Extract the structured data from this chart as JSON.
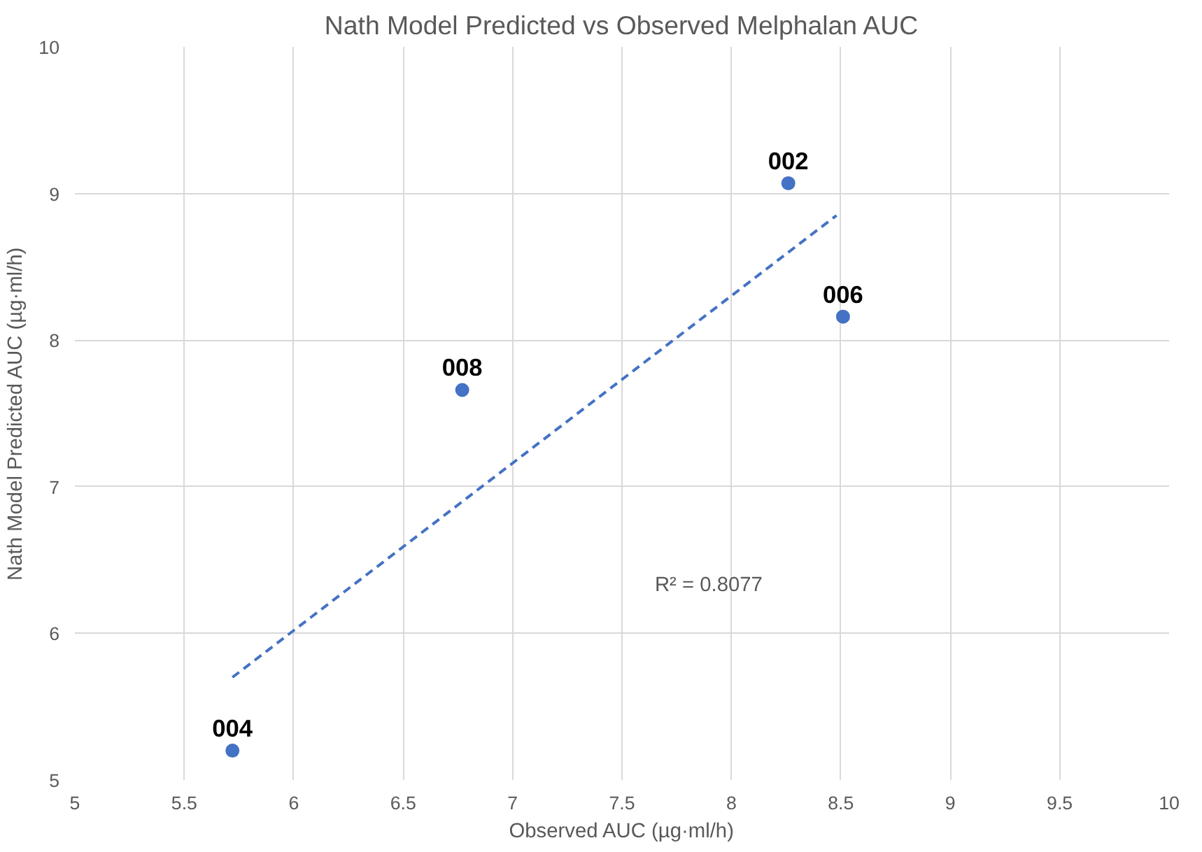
{
  "chart_data": {
    "type": "scatter",
    "title": "Nath Model Predicted vs Observed Melphalan AUC",
    "xlabel": "Observed AUC (µg·ml/h)",
    "ylabel": "Nath Model Predicted AUC (µg·ml/h)",
    "x": [
      5.72,
      6.77,
      8.26,
      8.51
    ],
    "series": [
      {
        "color": "#4472c4",
        "values": [
          5.2,
          7.66,
          9.07,
          8.16
        ],
        "marker": "circle"
      },
      {
        "type": "line",
        "color": "#4472c4",
        "x": [
          5.72,
          8.48
        ],
        "values": [
          5.7,
          8.85
        ],
        "line_style": "dashed",
        "marker": "none"
      }
    ],
    "annotations": [
      {
        "text": "004",
        "x": 5.72,
        "y": 5.2
      },
      {
        "text": "008",
        "x": 6.77,
        "y": 7.66
      },
      {
        "text": "002",
        "x": 8.26,
        "y": 9.07
      },
      {
        "text": "006",
        "x": 8.51,
        "y": 8.16
      },
      "R² = 0.8077"
    ],
    "xlim": [
      5,
      10
    ],
    "xticks": [
      5,
      5.5,
      6,
      6.5,
      7,
      7.5,
      8,
      8.5,
      9,
      9.5,
      10
    ],
    "ylim": [
      5,
      10
    ],
    "yticks": [
      5,
      6,
      7,
      8,
      9,
      10
    ],
    "grid": true
  }
}
